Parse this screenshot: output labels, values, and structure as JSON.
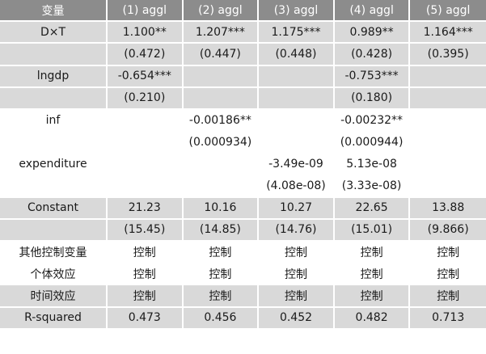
{
  "columns": [
    "变量",
    "(1) aggl",
    "(2) aggl",
    "(3) aggl",
    "(4) aggl",
    "(5) aggl"
  ],
  "rows": [
    {
      "label": "D×T",
      "cells": [
        "1.100**",
        "1.207***",
        "1.175***",
        "0.989**",
        "1.164***"
      ],
      "shade": "g"
    },
    {
      "label": "",
      "cells": [
        "(0.472)",
        "(0.447)",
        "(0.448)",
        "(0.428)",
        "(0.395)"
      ],
      "shade": "g"
    },
    {
      "label": "lngdp",
      "cells": [
        "-0.654***",
        "",
        "",
        "-0.753***",
        ""
      ],
      "shade": "g"
    },
    {
      "label": "",
      "cells": [
        "(0.210)",
        "",
        "",
        "(0.180)",
        ""
      ],
      "shade": "g"
    },
    {
      "label": "inf",
      "cells": [
        "",
        "-0.00186**",
        "",
        "-0.00232**",
        ""
      ],
      "shade": "w"
    },
    {
      "label": "",
      "cells": [
        "",
        "(0.000934)",
        "",
        "(0.000944)",
        ""
      ],
      "shade": "w"
    },
    {
      "label": "expenditure",
      "cells": [
        "",
        "",
        "-3.49e-09",
        "5.13e-08",
        ""
      ],
      "shade": "w"
    },
    {
      "label": "",
      "cells": [
        "",
        "",
        "(4.08e-08)",
        "(3.33e-08)",
        ""
      ],
      "shade": "w"
    },
    {
      "label": "Constant",
      "cells": [
        "21.23",
        "10.16",
        "10.27",
        "22.65",
        "13.88"
      ],
      "shade": "g"
    },
    {
      "label": "",
      "cells": [
        "(15.45)",
        "(14.85)",
        "(14.76)",
        "(15.01)",
        "(9.866)"
      ],
      "shade": "g"
    },
    {
      "label": "其他控制变量",
      "cells": [
        "控制",
        "控制",
        "控制",
        "控制",
        "控制"
      ],
      "shade": "w"
    },
    {
      "label": "个体效应",
      "cells": [
        "控制",
        "控制",
        "控制",
        "控制",
        "控制"
      ],
      "shade": "w"
    },
    {
      "label": "时间效应",
      "cells": [
        "控制",
        "控制",
        "控制",
        "控制",
        "控制"
      ],
      "shade": "g"
    },
    {
      "label": "R-squared",
      "cells": [
        "0.473",
        "0.456",
        "0.452",
        "0.482",
        "0.713"
      ],
      "shade": "g"
    }
  ],
  "colors": {
    "header_bg": "#8c8c8c",
    "shade_bg": "#d9d9d9",
    "plain_bg": "#ffffff"
  }
}
